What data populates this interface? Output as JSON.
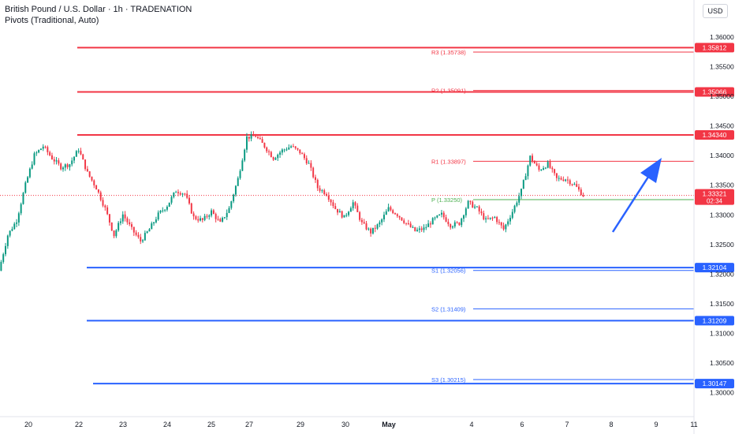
{
  "header": {
    "title": "British Pound / U.S. Dollar · 1h · TRADENATION",
    "subtitle": "Pivots (Traditional, Auto)",
    "currency_button": "USD"
  },
  "colors": {
    "up": "#089981",
    "down": "#f23645",
    "resistance": "#f23645",
    "support": "#2962ff",
    "pivot": "#4caf50",
    "arrow": "#2962ff",
    "axis_text": "#131722"
  },
  "chart_data": {
    "type": "candlestick",
    "x_ticks": [
      "20",
      "22",
      "23",
      "24",
      "25",
      "27",
      "29",
      "30",
      "May",
      "4",
      "6",
      "7",
      "8",
      "9",
      "11"
    ],
    "y_ticks": [
      "1.36000",
      "1.35500",
      "1.35000",
      "1.34500",
      "1.34000",
      "1.33500",
      "1.33000",
      "1.32500",
      "1.32000",
      "1.31500",
      "1.31000",
      "1.30500",
      "1.30000"
    ],
    "ylim": [
      1.2975,
      1.3635
    ],
    "horizontal_levels": [
      {
        "label": "1.35812",
        "value": 1.35812,
        "color": "#f23645"
      },
      {
        "label": "1.35066",
        "value": 1.35066,
        "color": "#f23645"
      },
      {
        "label": "1.34340",
        "value": 1.3434,
        "color": "#f23645"
      },
      {
        "label": "1.32104",
        "value": 1.32104,
        "color": "#2962ff"
      },
      {
        "label": "1.31209",
        "value": 1.31209,
        "color": "#2962ff"
      },
      {
        "label": "1.30147",
        "value": 1.30147,
        "color": "#2962ff"
      }
    ],
    "pivots": [
      {
        "label": "R3 (1.35738)",
        "value": 1.35738,
        "color": "#f23645"
      },
      {
        "label": "R2 (1.35091)",
        "value": 1.35091,
        "color": "#f23645"
      },
      {
        "label": "R1 (1.33897)",
        "value": 1.33897,
        "color": "#f23645"
      },
      {
        "label": "P (1.33250)",
        "value": 1.3325,
        "color": "#4caf50"
      },
      {
        "label": "S1 (1.32056)",
        "value": 1.32056,
        "color": "#2962ff"
      },
      {
        "label": "S2 (1.31409)",
        "value": 1.31409,
        "color": "#2962ff"
      },
      {
        "label": "S3 (1.30215)",
        "value": 1.30215,
        "color": "#2962ff"
      }
    ],
    "current_price": {
      "value": 1.33321,
      "label": "1.33321",
      "countdown": "02:34"
    },
    "close_path": [
      1.3205,
      1.3265,
      1.329,
      1.335,
      1.34,
      1.3415,
      1.3395,
      1.338,
      1.3385,
      1.341,
      1.337,
      1.3345,
      1.331,
      1.3265,
      1.33,
      1.3275,
      1.3255,
      1.3275,
      1.33,
      1.3315,
      1.334,
      1.3335,
      1.3295,
      1.329,
      1.3305,
      1.3285,
      1.331,
      1.336,
      1.343,
      1.3432,
      1.3415,
      1.3395,
      1.3408,
      1.3415,
      1.3405,
      1.3385,
      1.3345,
      1.3335,
      1.331,
      1.3295,
      1.332,
      1.3285,
      1.327,
      1.3285,
      1.331,
      1.33,
      1.3285,
      1.3272,
      1.3276,
      1.329,
      1.33,
      1.3282,
      1.3285,
      1.332,
      1.331,
      1.329,
      1.3295,
      1.3275,
      1.3305,
      1.334,
      1.3397,
      1.3375,
      1.3385,
      1.336,
      1.336,
      1.335,
      1.3332
    ]
  }
}
